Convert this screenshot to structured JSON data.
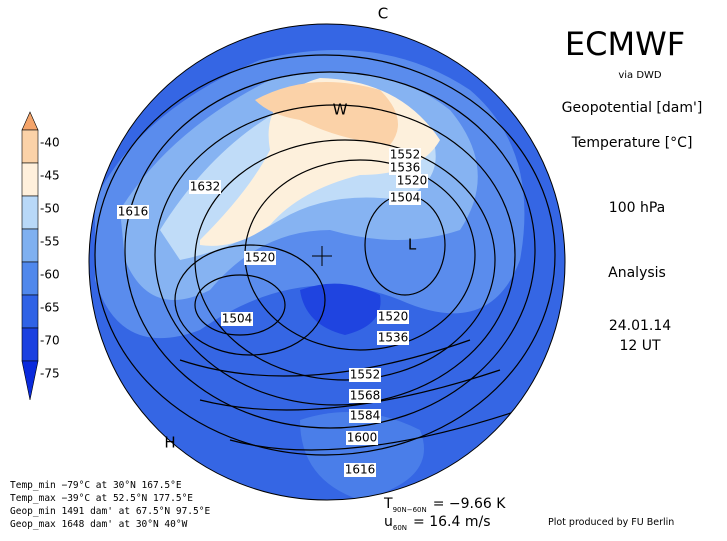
{
  "header": {
    "title": "ECMWF",
    "source": "via DWD",
    "fields": [
      "Geopotential [dam']",
      "Temperature [°C]"
    ],
    "level": "100 hPa",
    "product": "Analysis",
    "date": "24.01.14",
    "time": "12 UT"
  },
  "colorbar": {
    "labels": [
      -40,
      -45,
      -50,
      -55,
      -60,
      -65,
      -70,
      -75
    ]
  },
  "map": {
    "letters": [
      "C",
      "W",
      "L",
      "H"
    ],
    "contour_labels": [
      1632,
      1616,
      1552,
      1536,
      1520,
      1504,
      1520,
      1504,
      1520,
      1536,
      1552,
      1568,
      1584,
      1600,
      1616
    ]
  },
  "stats": [
    "Temp_min −79°C at 30°N 167.5°E",
    "Temp_max −39°C at 52.5°N 177.5°E",
    "Geop_min 1491 dam' at 67.5°N 97.5°E",
    "Geop_max 1648 dam' at 30°N 40°W"
  ],
  "indices": [
    {
      "symbol": "T",
      "subscript": "90N−60N",
      "text": "= −9.66 K"
    },
    {
      "symbol": "u",
      "subscript": "60N",
      "text": "= 16.4 m/s"
    }
  ],
  "credit": "Plot produced by FU Berlin"
}
